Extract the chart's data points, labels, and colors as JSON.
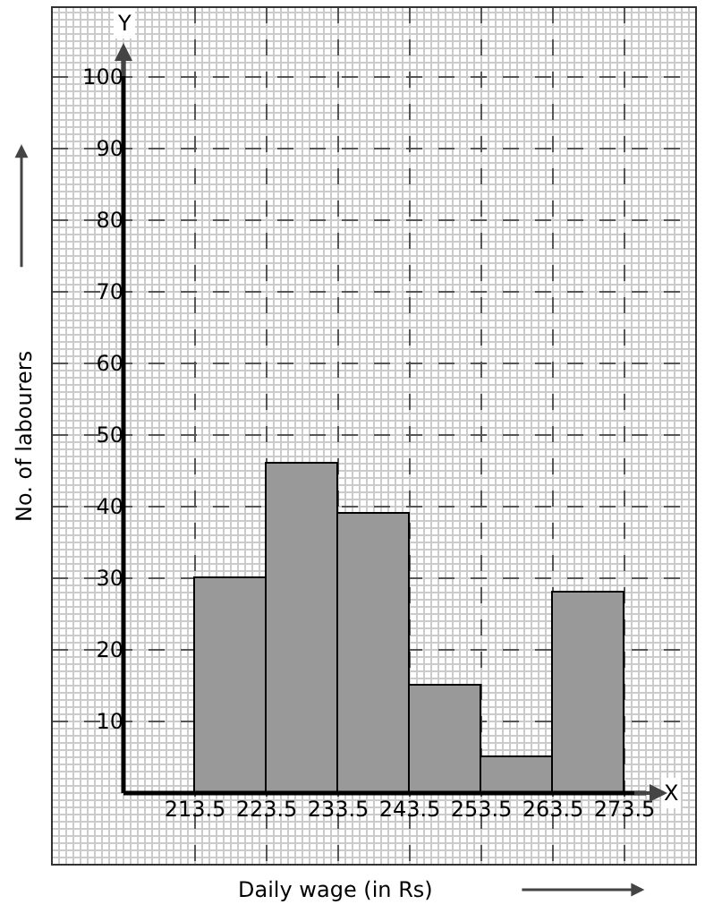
{
  "chart_data": {
    "type": "histogram",
    "xlabel": "Daily wage (in Rs)",
    "ylabel": "No. of labourers",
    "annotations": [
      "Y",
      "X"
    ],
    "bins": [
      213.5,
      223.5,
      233.5,
      243.5,
      253.5,
      263.5,
      273.5
    ],
    "values": [
      30,
      46,
      39,
      15,
      5,
      28
    ],
    "color": "#999999",
    "xlim": [
      193.5,
      283.5
    ],
    "xticks": [
      213.5,
      223.5,
      233.5,
      243.5,
      253.5,
      263.5,
      273.5
    ],
    "ylim": [
      -10,
      109.75
    ],
    "yticks": [
      10,
      20,
      30,
      40,
      50,
      60,
      70,
      80,
      90,
      100
    ],
    "grid": true,
    "legend": false
  }
}
